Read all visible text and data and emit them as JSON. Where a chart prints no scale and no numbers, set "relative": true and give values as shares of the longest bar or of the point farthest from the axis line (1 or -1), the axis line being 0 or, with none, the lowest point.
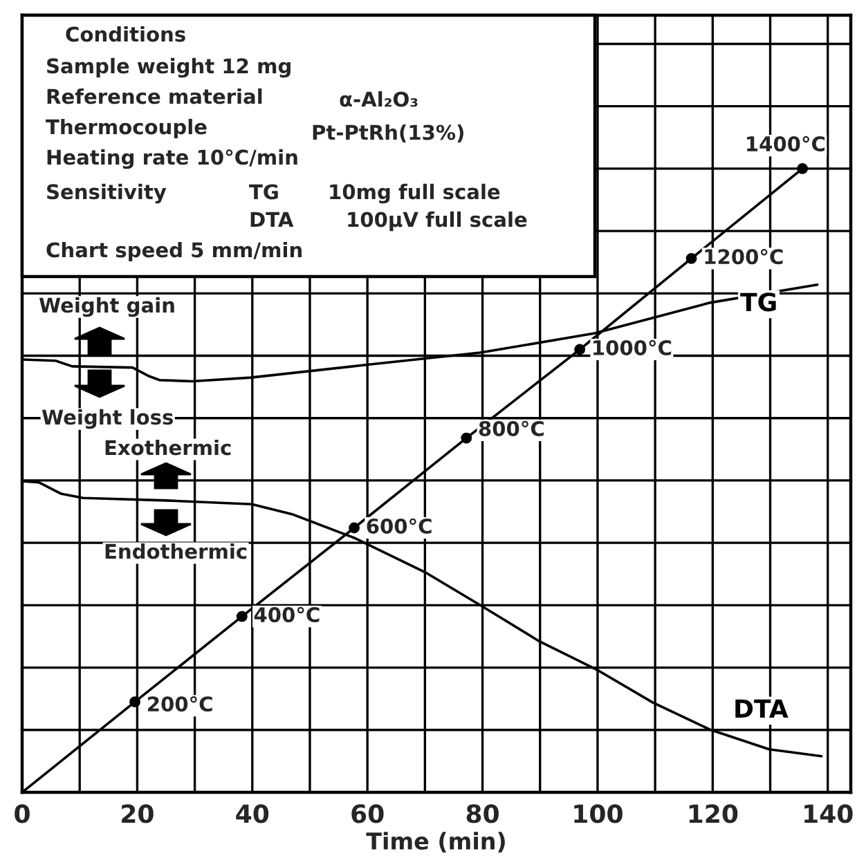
{
  "chart_data": {
    "type": "line",
    "relative": true,
    "xlabel": "Time (min)",
    "xlim": [
      0,
      144
    ],
    "xticks": [
      0,
      {
        "value": 10,
        "label": null
      },
      20,
      {
        "value": 30,
        "label": null
      },
      40,
      {
        "value": 50,
        "label": null
      },
      60,
      {
        "value": 70,
        "label": null
      },
      80,
      {
        "value": 90,
        "label": null
      },
      100,
      {
        "value": 110,
        "label": null
      },
      120,
      {
        "value": 130,
        "label": null
      },
      140
    ],
    "grid": true,
    "legend": false,
    "series": [
      {
        "color": "#000000",
        "x": [
          0,
          19.6,
          38.2,
          57.7,
          77.2,
          96.9,
          116.3,
          135.6
        ],
        "values": [
          0,
          0.145,
          0.282,
          0.424,
          0.568,
          0.71,
          0.856,
          1.0
        ]
      },
      {
        "type": "scatter",
        "marker": "circle",
        "color": "#000000",
        "x": [
          19.6,
          38.2,
          57.7,
          77.2,
          96.9,
          116.3,
          135.6
        ],
        "values": [
          0.145,
          0.282,
          0.424,
          0.568,
          0.71,
          0.856,
          1.0
        ]
      },
      {
        "name": "TG",
        "color": "#000000",
        "x": [
          0,
          5.8,
          8.7,
          19.2,
          22.1,
          23.9,
          29.6,
          39.7,
          59.4,
          79.6,
          99.5,
          119.5,
          138.2
        ],
        "values": [
          0.694,
          0.692,
          0.683,
          0.681,
          0.667,
          0.661,
          0.659,
          0.665,
          0.685,
          0.705,
          0.736,
          0.785,
          0.814
        ]
      },
      {
        "name": "DTA",
        "color": "#000000",
        "x": [
          0,
          2.9,
          6.7,
          10.6,
          25,
          39.9,
          46.9,
          57.7,
          70,
          79.8,
          89.9,
          99.8,
          109.6,
          119.7,
          129.8,
          138.9
        ],
        "values": [
          0.499,
          0.497,
          0.479,
          0.472,
          0.468,
          0.462,
          0.446,
          0.408,
          0.353,
          0.299,
          0.242,
          0.197,
          0.144,
          0.1,
          0.069,
          0.058
        ]
      }
    ],
    "annotations": [
      "Conditions",
      "Sample weight 12 mg",
      "Reference material",
      "α-Al₂O₃",
      "Thermocouple",
      "Pt-PtRh(13%)",
      "Heating rate 10°C/min",
      "Sensitivity",
      "TG",
      "10mg full scale",
      "DTA",
      "100μV full scale",
      "Chart speed 5 mm/min",
      "Weight gain",
      "Weight loss",
      "Exothermic",
      "Endothermic",
      {
        "text": "200°C",
        "x": 19.6,
        "y": 0.145
      },
      {
        "text": "400°C",
        "x": 38.2,
        "y": 0.282
      },
      {
        "text": "600°C",
        "x": 57.7,
        "y": 0.424
      },
      {
        "text": "800°C",
        "x": 77.2,
        "y": 0.568
      },
      {
        "text": "1000°C",
        "x": 96.9,
        "y": 0.71
      },
      {
        "text": "1200°C",
        "x": 116.3,
        "y": 0.856
      },
      {
        "text": "1400°C",
        "x": 135.6,
        "y": 1.0
      }
    ]
  }
}
